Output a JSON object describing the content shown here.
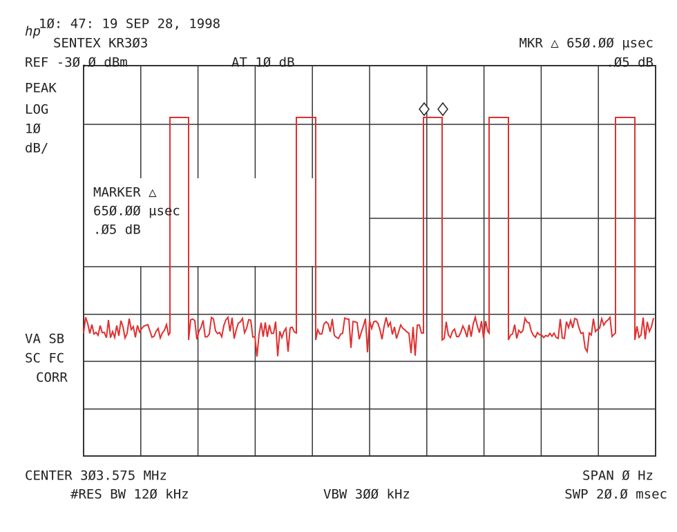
{
  "header": {
    "logo": "hp",
    "timestamp": "1Ø: 47: 19 SEP 28, 1998",
    "instrument": "SENTEX KR3Ø3",
    "marker_readout": "MKR △ 65Ø.ØØ µsec",
    "reference": "REF -3Ø.Ø dBm",
    "attenuation": "AT 1Ø dB",
    "marker_level": ".Ø5 dB"
  },
  "left_labels": {
    "detector": "PEAK",
    "scale_type": "LOG",
    "scale_value": "1Ø",
    "scale_unit": "dB/",
    "flags": [
      "VA SB",
      "SC FC",
      "CORR"
    ]
  },
  "marker_box": {
    "title": "MARKER △",
    "time": "65Ø.ØØ µsec",
    "level": ".Ø5 dB"
  },
  "footer": {
    "center": "CENTER 3Ø3.575 MHz",
    "span": "SPAN Ø Hz",
    "res_bw": "#RES BW 12Ø kHz",
    "vbw": "VBW 3ØØ kHz",
    "sweep": "SWP 2Ø.Ø msec"
  }
}
